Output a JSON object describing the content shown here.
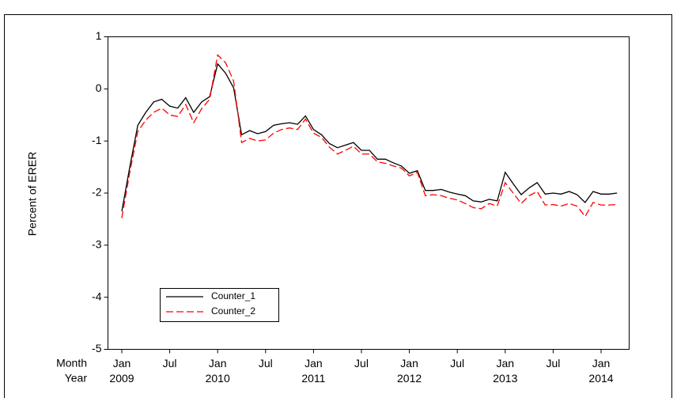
{
  "chart_data": {
    "type": "line",
    "ylabel": "Percent of ERER",
    "x_row_labels": [
      "Month",
      "Year"
    ],
    "categories": [
      "Jan",
      null,
      null,
      null,
      null,
      null,
      "Jul",
      null,
      null,
      null,
      null,
      null,
      "Jan",
      null,
      null,
      null,
      null,
      null,
      "Jul",
      null,
      null,
      null,
      null,
      null,
      "Jan",
      null,
      null,
      null,
      null,
      null,
      "Jul",
      null,
      null,
      null,
      null,
      null,
      "Jan",
      null,
      null,
      null,
      null,
      null,
      "Jul",
      null,
      null,
      null,
      null,
      null,
      "Jan",
      null,
      null,
      null,
      null,
      null,
      "Jul",
      null,
      null,
      null,
      null,
      null,
      "Jan",
      null,
      null
    ],
    "years": [
      "2009",
      null,
      null,
      null,
      null,
      null,
      null,
      null,
      null,
      null,
      null,
      null,
      "2010",
      null,
      null,
      null,
      null,
      null,
      null,
      null,
      null,
      null,
      null,
      null,
      "2011",
      null,
      null,
      null,
      null,
      null,
      null,
      null,
      null,
      null,
      null,
      null,
      "2012",
      null,
      null,
      null,
      null,
      null,
      null,
      null,
      null,
      null,
      null,
      null,
      "2013",
      null,
      null,
      null,
      null,
      null,
      null,
      null,
      null,
      null,
      null,
      null,
      "2014",
      null,
      null
    ],
    "series": [
      {
        "name": "Counter_1",
        "color": "#000000",
        "dash": false,
        "values": [
          -2.35,
          -1.5,
          -0.7,
          -0.45,
          -0.25,
          -0.2,
          -0.33,
          -0.37,
          -0.17,
          -0.45,
          -0.25,
          -0.15,
          0.48,
          0.3,
          0.02,
          -0.88,
          -0.8,
          -0.86,
          -0.82,
          -0.7,
          -0.67,
          -0.65,
          -0.68,
          -0.52,
          -0.78,
          -0.88,
          -1.05,
          -1.13,
          -1.08,
          -1.03,
          -1.18,
          -1.18,
          -1.35,
          -1.35,
          -1.42,
          -1.48,
          -1.62,
          -1.57,
          -1.95,
          -1.95,
          -1.93,
          -1.98,
          -2.02,
          -2.05,
          -2.15,
          -2.17,
          -2.12,
          -2.15,
          -1.6,
          -1.82,
          -2.03,
          -1.9,
          -1.8,
          -2.02,
          -2.0,
          -2.02,
          -1.97,
          -2.03,
          -2.18,
          -1.97,
          -2.02,
          -2.02,
          -2.0
        ]
      },
      {
        "name": "Counter_2",
        "color": "#ff0000",
        "dash": true,
        "values": [
          -2.48,
          -1.6,
          -0.82,
          -0.6,
          -0.45,
          -0.37,
          -0.5,
          -0.53,
          -0.3,
          -0.65,
          -0.38,
          -0.2,
          0.65,
          0.5,
          0.15,
          -1.03,
          -0.95,
          -1.0,
          -0.98,
          -0.85,
          -0.78,
          -0.75,
          -0.78,
          -0.58,
          -0.85,
          -0.93,
          -1.12,
          -1.25,
          -1.18,
          -1.1,
          -1.25,
          -1.25,
          -1.4,
          -1.43,
          -1.48,
          -1.52,
          -1.67,
          -1.6,
          -2.05,
          -2.03,
          -2.05,
          -2.1,
          -2.13,
          -2.2,
          -2.28,
          -2.3,
          -2.2,
          -2.25,
          -1.8,
          -2.0,
          -2.2,
          -2.05,
          -1.97,
          -2.23,
          -2.22,
          -2.25,
          -2.2,
          -2.25,
          -2.45,
          -2.18,
          -2.23,
          -2.23,
          -2.22
        ]
      }
    ],
    "ylim": [
      -5,
      1
    ],
    "yticks": [
      -5,
      -4,
      -3,
      -2,
      -1,
      0,
      1
    ],
    "legend": "lower-left",
    "grid": false
  }
}
